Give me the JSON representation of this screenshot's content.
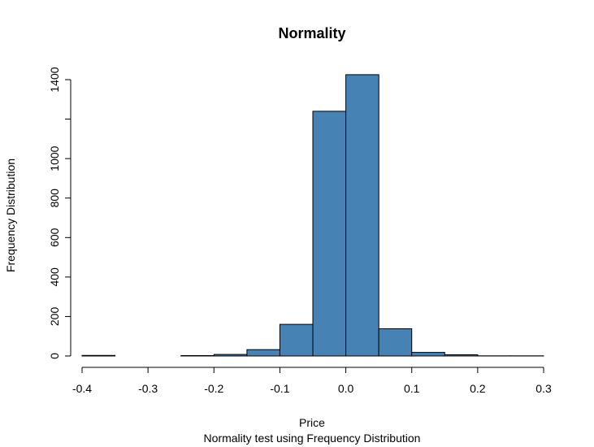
{
  "chart_data": {
    "type": "bar",
    "title": "Normality",
    "xlabel": "Price",
    "ylabel": "Frequency Distribution",
    "subtitle": "Normality test using Frequency Distribution",
    "bar_color": "#4682B4",
    "edge_color": "#000000",
    "bins": [
      {
        "from": -0.4,
        "to": -0.35,
        "count": 3
      },
      {
        "from": -0.35,
        "to": -0.3,
        "count": 0
      },
      {
        "from": -0.3,
        "to": -0.25,
        "count": 0
      },
      {
        "from": -0.25,
        "to": -0.2,
        "count": 2
      },
      {
        "from": -0.2,
        "to": -0.15,
        "count": 8
      },
      {
        "from": -0.15,
        "to": -0.1,
        "count": 32
      },
      {
        "from": -0.1,
        "to": -0.05,
        "count": 160
      },
      {
        "from": -0.05,
        "to": 0.0,
        "count": 1240
      },
      {
        "from": 0.0,
        "to": 0.05,
        "count": 1425
      },
      {
        "from": 0.05,
        "to": 0.1,
        "count": 138
      },
      {
        "from": 0.1,
        "to": 0.15,
        "count": 18
      },
      {
        "from": 0.15,
        "to": 0.2,
        "count": 6
      },
      {
        "from": 0.2,
        "to": 0.25,
        "count": 1
      },
      {
        "from": 0.25,
        "to": 0.3,
        "count": 1
      }
    ],
    "xlim": [
      -0.4,
      0.3
    ],
    "ylim": [
      0,
      1400
    ],
    "x_ticks": [
      -0.4,
      -0.3,
      -0.2,
      -0.1,
      0.0,
      0.1,
      0.2,
      0.3
    ],
    "x_tick_labels": [
      "-0.4",
      "-0.3",
      "-0.2",
      "-0.1",
      "0.0",
      "0.1",
      "0.2",
      "0.3"
    ],
    "y_ticks": [
      0,
      200,
      400,
      600,
      800,
      1000,
      1200,
      1400
    ],
    "y_tick_labels": [
      "0",
      "200",
      "400",
      "600",
      "800",
      "1000",
      "",
      "1400"
    ],
    "grid": false,
    "legend": "none"
  }
}
